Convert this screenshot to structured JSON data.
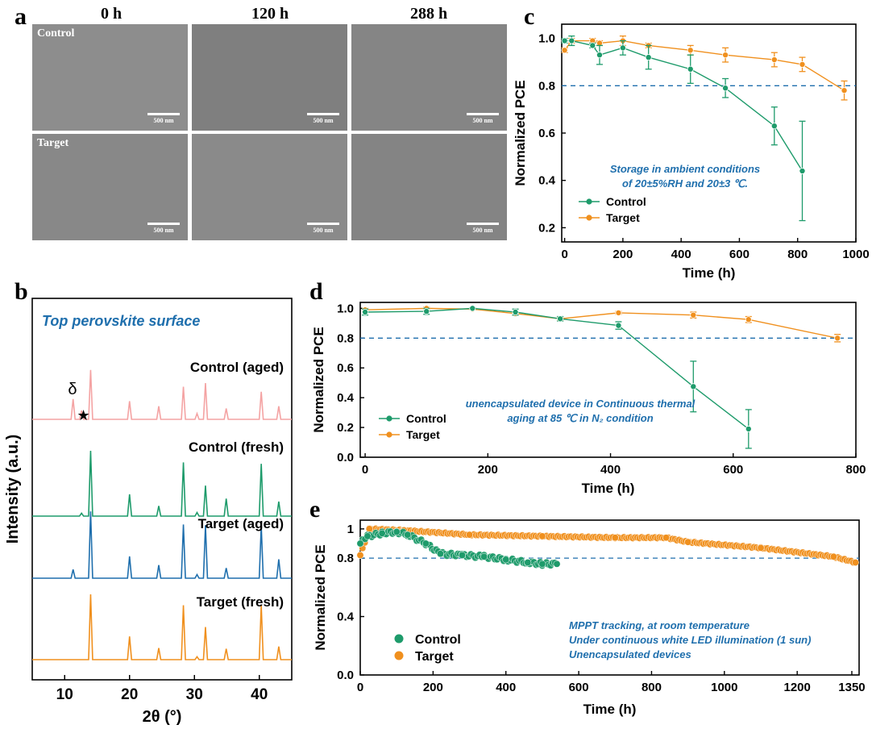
{
  "panel_labels": {
    "a": "a",
    "b": "b",
    "c": "c",
    "d": "d",
    "e": "e"
  },
  "sem_panel": {
    "column_headers": [
      "0 h",
      "120 h",
      "288 h"
    ],
    "row_labels": [
      "Control",
      "Target"
    ],
    "scale_bar": "500 nm"
  },
  "chart_data": [
    {
      "id": "b",
      "type": "line",
      "title": "Top perovskite surface",
      "xlabel": "2θ (°)",
      "ylabel": "Intensity (a.u.)",
      "xlim": [
        5,
        45
      ],
      "xticks": [
        10,
        20,
        30,
        40
      ],
      "annotations": [
        "δ",
        "★"
      ],
      "peak_positions": [
        11.3,
        12.6,
        14.0,
        20.0,
        24.5,
        28.3,
        30.4,
        31.7,
        34.9,
        40.3,
        43.0
      ],
      "series": [
        {
          "name": "Control (aged)",
          "color": "#f4a3a3",
          "peaks": [
            0.28,
            0.12,
            0.68,
            0.25,
            0.18,
            0.45,
            0.08,
            0.5,
            0.15,
            0.38,
            0.18
          ]
        },
        {
          "name": "Control (fresh)",
          "color": "#1e9b6b",
          "peaks": [
            0,
            0.04,
            0.9,
            0.3,
            0.14,
            0.74,
            0.05,
            0.42,
            0.24,
            0.72,
            0.2
          ]
        },
        {
          "name": "Target (aged)",
          "color": "#1f6fad",
          "peaks": [
            0.12,
            0,
            0.92,
            0.3,
            0.18,
            0.74,
            0.05,
            0.73,
            0.14,
            0.72,
            0.26
          ]
        },
        {
          "name": "Target (fresh)",
          "color": "#f0901e",
          "peaks": [
            0,
            0,
            0.9,
            0.32,
            0.16,
            0.75,
            0.04,
            0.45,
            0.15,
            0.75,
            0.18
          ]
        }
      ]
    },
    {
      "id": "c",
      "type": "line",
      "xlabel": "Time (h)",
      "ylabel": "Normalized PCE",
      "xlim": [
        -10,
        1000
      ],
      "ylim": [
        0.14,
        1.06
      ],
      "xticks": [
        0,
        200,
        400,
        600,
        800,
        1000
      ],
      "yticks": [
        0.2,
        0.4,
        0.6,
        0.8,
        1.0
      ],
      "ytick_labels": [
        "0.2",
        "0.4",
        "0.6",
        "0.8",
        "1.0"
      ],
      "reference_line": 0.8,
      "annotation": [
        "Storage in ambient conditions",
        "of 20±5%RH and 20±3 ℃."
      ],
      "series": [
        {
          "name": "Control",
          "color": "#1e9b6b",
          "x": [
            0,
            24,
            96,
            120,
            200,
            288,
            432,
            552,
            720,
            816
          ],
          "y": [
            0.99,
            0.99,
            0.97,
            0.93,
            0.96,
            0.92,
            0.87,
            0.79,
            0.63,
            0.44
          ],
          "err": [
            0.01,
            0.02,
            0.01,
            0.04,
            0.03,
            0.05,
            0.06,
            0.04,
            0.08,
            0.21
          ]
        },
        {
          "name": "Target",
          "color": "#f0901e",
          "x": [
            0,
            24,
            96,
            120,
            200,
            288,
            432,
            552,
            720,
            816,
            960
          ],
          "y": [
            0.95,
            0.99,
            0.99,
            0.98,
            0.99,
            0.97,
            0.95,
            0.93,
            0.91,
            0.89,
            0.78
          ],
          "err": [
            0.01,
            0.01,
            0.01,
            0.01,
            0.02,
            0.01,
            0.02,
            0.03,
            0.03,
            0.03,
            0.04
          ]
        }
      ]
    },
    {
      "id": "d",
      "type": "line",
      "xlabel": "Time (h)",
      "ylabel": "Normalized PCE",
      "xlim": [
        -8,
        800
      ],
      "ylim": [
        0,
        1.04
      ],
      "xticks": [
        0,
        200,
        400,
        600,
        800
      ],
      "yticks": [
        0,
        0.2,
        0.4,
        0.6,
        0.8,
        1.0
      ],
      "ytick_labels": [
        "0.0",
        "0.2",
        "0.4",
        "0.6",
        "0.8",
        "1.0"
      ],
      "reference_line": 0.8,
      "annotation": [
        "unencapsulated device in Continuous thermal",
        "aging at 85 ℃ in N₂ condition"
      ],
      "series": [
        {
          "name": "Control",
          "color": "#1e9b6b",
          "x": [
            0,
            100,
            175,
            245,
            318,
            413,
            535,
            625
          ],
          "y": [
            0.975,
            0.98,
            1.0,
            0.975,
            0.93,
            0.885,
            0.475,
            0.19
          ],
          "err": [
            0.02,
            0.02,
            0.005,
            0.02,
            0.015,
            0.025,
            0.17,
            0.13
          ]
        },
        {
          "name": "Target",
          "color": "#f0901e",
          "x": [
            0,
            100,
            175,
            245,
            318,
            413,
            535,
            625,
            770
          ],
          "y": [
            0.99,
            1.0,
            0.995,
            0.965,
            0.93,
            0.97,
            0.955,
            0.925,
            0.8
          ],
          "err": [
            0.01,
            0.01,
            0.005,
            0.01,
            0.01,
            0.01,
            0.02,
            0.02,
            0.025
          ]
        }
      ]
    },
    {
      "id": "e",
      "type": "scatter",
      "xlabel": "Time (h)",
      "ylabel": "Normalized PCE",
      "xlim": [
        0,
        1370
      ],
      "ylim": [
        0,
        1.06
      ],
      "xticks": [
        0,
        200,
        400,
        600,
        800,
        1000,
        1200,
        1350
      ],
      "yticks": [
        0,
        0.4,
        0.8,
        1.0
      ],
      "ytick_labels": [
        "0.0",
        "0.4",
        "0.8",
        "1"
      ],
      "reference_line": 0.8,
      "annotation": [
        "MPPT tracking, at room temperature",
        "Under continuous white LED illumination (1 sun)",
        "Unencapsulated devices"
      ],
      "series": [
        {
          "name": "Control",
          "color": "#1e9b6b",
          "x": [
            0,
            20,
            60,
            100,
            130,
            180,
            220,
            280,
            340,
            400,
            460,
            500,
            540
          ],
          "y": [
            0.9,
            0.95,
            0.97,
            0.98,
            0.96,
            0.9,
            0.83,
            0.82,
            0.81,
            0.79,
            0.77,
            0.76,
            0.76
          ]
        },
        {
          "name": "Target",
          "color": "#f0901e",
          "x": [
            0,
            25,
            120,
            300,
            500,
            700,
            840,
            900,
            1100,
            1300,
            1360
          ],
          "y": [
            0.82,
            1.0,
            0.99,
            0.96,
            0.95,
            0.94,
            0.94,
            0.91,
            0.87,
            0.81,
            0.77
          ]
        }
      ]
    }
  ]
}
